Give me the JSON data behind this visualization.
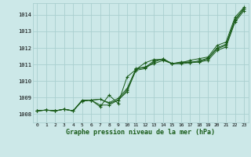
{
  "title": "Graphe pression niveau de la mer (hPa)",
  "bg_color": "#cce8e8",
  "grid_color": "#aacfcf",
  "line_color": "#1a5c1a",
  "ylim": [
    1007.5,
    1014.7
  ],
  "xlim": [
    -0.5,
    23.5
  ],
  "yticks": [
    1008,
    1009,
    1010,
    1011,
    1012,
    1013,
    1014
  ],
  "xticks": [
    0,
    1,
    2,
    3,
    4,
    5,
    6,
    7,
    8,
    9,
    10,
    11,
    12,
    13,
    14,
    15,
    16,
    17,
    18,
    19,
    20,
    21,
    22,
    23
  ],
  "series": [
    [
      1008.2,
      1008.25,
      1008.2,
      1008.3,
      1008.2,
      1008.8,
      1008.85,
      1008.9,
      1008.7,
      1008.95,
      1009.55,
      1010.75,
      1010.85,
      1011.05,
      1011.25,
      1011.05,
      1011.05,
      1011.1,
      1011.15,
      1011.25,
      1011.85,
      1012.05,
      1013.55,
      1014.25
    ],
    [
      1008.2,
      1008.25,
      1008.2,
      1008.3,
      1008.2,
      1008.8,
      1008.85,
      1008.55,
      1008.55,
      1008.85,
      1009.45,
      1010.65,
      1010.75,
      1011.15,
      1011.35,
      1011.05,
      1011.15,
      1011.15,
      1011.15,
      1011.35,
      1011.95,
      1012.15,
      1013.65,
      1014.35
    ],
    [
      1008.2,
      1008.25,
      1008.2,
      1008.3,
      1008.2,
      1008.85,
      1008.85,
      1008.45,
      1009.15,
      1008.65,
      1010.25,
      1010.7,
      1011.1,
      1011.3,
      1011.3,
      1011.05,
      1011.1,
      1011.25,
      1011.35,
      1011.45,
      1012.15,
      1012.35,
      1013.85,
      1014.45
    ],
    [
      1008.2,
      1008.25,
      1008.2,
      1008.3,
      1008.2,
      1008.8,
      1008.85,
      1008.9,
      1008.65,
      1008.85,
      1009.35,
      1010.72,
      1010.82,
      1011.22,
      1011.32,
      1011.05,
      1011.12,
      1011.12,
      1011.22,
      1011.38,
      1012.0,
      1012.22,
      1013.72,
      1014.38
    ]
  ],
  "series_with_markers": [
    {
      "line": [
        1008.2,
        1008.25,
        1008.2,
        1008.3,
        1008.2,
        1008.8,
        1008.85,
        1008.9,
        1008.7,
        1008.95,
        1009.55,
        1010.75,
        1010.85,
        1011.05,
        1011.25,
        1011.05,
        1011.05,
        1011.1,
        1011.15,
        1011.25,
        1011.85,
        1012.05,
        1013.55,
        1014.25
      ],
      "marker_x": [
        0,
        1,
        2,
        3,
        4,
        5,
        6,
        7,
        8,
        9,
        10,
        11,
        12,
        13,
        14,
        15,
        16,
        17,
        18,
        19,
        20,
        21,
        22,
        23
      ]
    },
    {
      "line": [
        1008.2,
        1008.25,
        1008.2,
        1008.3,
        1008.2,
        1008.8,
        1008.85,
        1008.55,
        1008.55,
        1008.85,
        1009.45,
        1010.65,
        1010.75,
        1011.15,
        1011.35,
        1011.05,
        1011.15,
        1011.15,
        1011.15,
        1011.35,
        1011.95,
        1012.15,
        1013.65,
        1014.35
      ],
      "marker_x": [
        0,
        1,
        2,
        3,
        4,
        5,
        6,
        7,
        8,
        9,
        10,
        11,
        12,
        13,
        14,
        15,
        16,
        17,
        18,
        19,
        20,
        21,
        22,
        23
      ]
    },
    {
      "line": [
        1008.2,
        1008.25,
        1008.2,
        1008.3,
        1008.2,
        1008.85,
        1008.85,
        1008.45,
        1009.15,
        1008.65,
        1010.25,
        1010.7,
        1011.1,
        1011.3,
        1011.3,
        1011.05,
        1011.1,
        1011.25,
        1011.35,
        1011.45,
        1012.15,
        1012.35,
        1013.85,
        1014.45
      ],
      "marker_x": [
        0,
        1,
        2,
        3,
        5,
        6,
        7,
        8,
        9,
        10,
        11,
        12,
        13,
        14,
        15,
        16,
        17,
        18,
        19,
        20,
        21,
        22,
        23
      ]
    },
    {
      "line": [
        null,
        null,
        null,
        null,
        null,
        null,
        null,
        null,
        null,
        null,
        1009.35,
        1010.72,
        1010.82,
        1011.22,
        1011.32,
        1011.05,
        1011.12,
        1011.12,
        1011.22,
        1011.38,
        1012.0,
        1012.22,
        1013.72,
        1014.38
      ],
      "marker_x": [
        10,
        11,
        12,
        13,
        14,
        15,
        16,
        17,
        18,
        19,
        20,
        21,
        22,
        23
      ],
      "start_x": 10
    }
  ]
}
